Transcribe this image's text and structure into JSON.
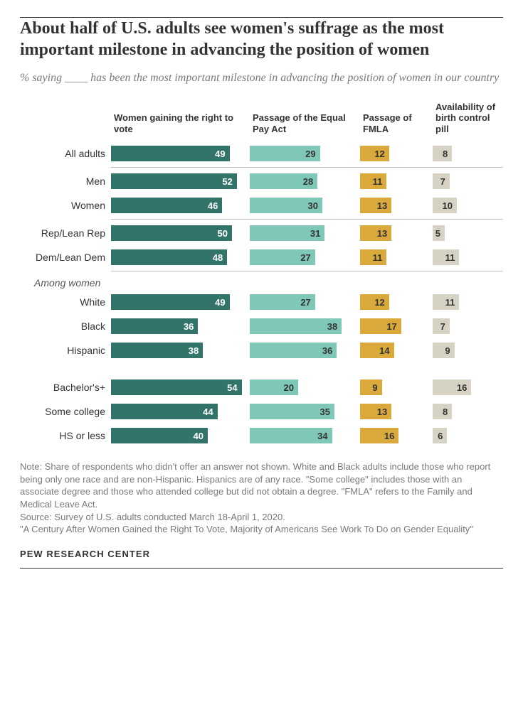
{
  "title": "About half of U.S. adults see women's suffrage as the most important milestone in advancing the position of women",
  "subtitle_pre": "% saying ",
  "subtitle_blank": "____",
  "subtitle_post": " has been the most important milestone in advancing the position of women in our country",
  "columns": [
    {
      "label": "Women gaining the right to vote",
      "width": 195,
      "color": "#33746a",
      "text_color": "#ffffff",
      "scale": 3.4
    },
    {
      "label": "Passage of the Equal Pay Act",
      "width": 155,
      "color": "#7fc8b8",
      "text_color": "#333333",
      "scale": 3.4
    },
    {
      "label": "Passage of FMLA",
      "width": 102,
      "color": "#d9a93c",
      "text_color": "#333333",
      "scale": 3.4
    },
    {
      "label": "Availability of birth control pill",
      "width": 95,
      "color": "#d6d2c4",
      "text_color": "#333333",
      "scale": 3.4
    }
  ],
  "groups": [
    {
      "rows": [
        {
          "label": "All adults",
          "values": [
            49,
            29,
            12,
            8
          ]
        }
      ],
      "divider_after": true
    },
    {
      "rows": [
        {
          "label": "Men",
          "values": [
            52,
            28,
            11,
            7
          ]
        },
        {
          "label": "Women",
          "values": [
            46,
            30,
            13,
            10
          ]
        }
      ],
      "divider_after": true
    },
    {
      "rows": [
        {
          "label": "Rep/Lean Rep",
          "values": [
            50,
            31,
            13,
            5
          ]
        },
        {
          "label": "Dem/Lean Dem",
          "values": [
            48,
            27,
            11,
            11
          ]
        }
      ],
      "divider_after": true
    },
    {
      "section_label": "Among women",
      "rows": [
        {
          "label": "White",
          "values": [
            49,
            27,
            12,
            11
          ]
        },
        {
          "label": "Black",
          "values": [
            36,
            38,
            17,
            7
          ]
        },
        {
          "label": "Hispanic",
          "values": [
            38,
            36,
            14,
            9
          ]
        }
      ],
      "gap_after": true
    },
    {
      "rows": [
        {
          "label": "Bachelor's+",
          "values": [
            54,
            20,
            9,
            16
          ]
        },
        {
          "label": "Some college",
          "values": [
            44,
            35,
            13,
            8
          ]
        },
        {
          "label": "HS or less",
          "values": [
            40,
            34,
            16,
            6
          ]
        }
      ]
    }
  ],
  "note": "Note: Share of respondents who didn't offer an answer not shown. White and Black adults include those who report being only one race and are non-Hispanic. Hispanics are of any race. \"Some college\" includes those with an associate degree and those who attended college but did not obtain a degree. \"FMLA\" refers to the Family and Medical Leave Act.\nSource: Survey of U.S. adults conducted March 18-April 1, 2020.\n\"A Century After Women Gained the Right To Vote, Majority of Americans See Work To Do on Gender Equality\"",
  "footer": "PEW RESEARCH CENTER"
}
